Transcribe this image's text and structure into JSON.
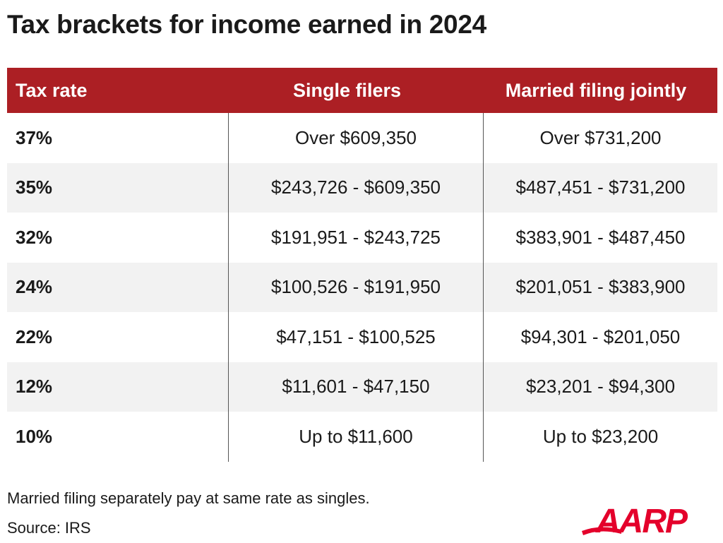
{
  "title": "Tax brackets for income earned in 2024",
  "table": {
    "headers": [
      "Tax rate",
      "Single filers",
      "Married filing jointly"
    ],
    "rows": [
      [
        "37%",
        "Over $609,350",
        "Over $731,200"
      ],
      [
        "35%",
        "$243,726 - $609,350",
        "$487,451 - $731,200"
      ],
      [
        "32%",
        "$191,951 - $243,725",
        "$383,901 - $487,450"
      ],
      [
        "24%",
        "$100,526 - $191,950",
        "$201,051 - $383,900"
      ],
      [
        "22%",
        "$47,151 - $100,525",
        "$94,301 - $201,050"
      ],
      [
        "12%",
        "$11,601 - $47,150",
        "$23,201 - $94,300"
      ],
      [
        "10%",
        "Up to $11,600",
        "Up to $23,200"
      ]
    ]
  },
  "footer": {
    "note": "Married filing separately pay at same rate as singles.",
    "source": "Source: IRS"
  },
  "logo": {
    "text": "AARP",
    "color": "#e4002b"
  },
  "colors": {
    "header_bg": "#ac1f24",
    "header_text": "#ffffff",
    "shaded_row": "#f2f2f2"
  }
}
